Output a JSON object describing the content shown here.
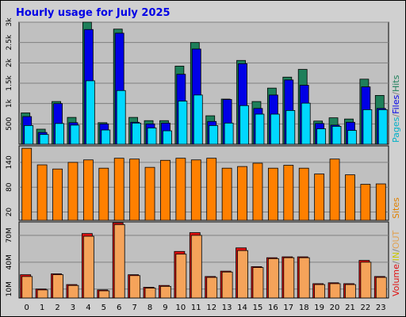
{
  "title": "Hourly usage for July 2025",
  "colors": {
    "background": "#d0d0d0",
    "panel": "#c0c0c0",
    "hits": "#1e7f5a",
    "files": "#0000e6",
    "pages": "#00d8ff",
    "sites": "#ff8000",
    "volume": "#e01010",
    "volume_in": "#f5a35a"
  },
  "legends": {
    "top": [
      {
        "text": "Pages",
        "color": "#00b0c8"
      },
      {
        "text": "/",
        "color": "#808080"
      },
      {
        "text": "Files",
        "color": "#0000e6"
      },
      {
        "text": "/",
        "color": "#808080"
      },
      {
        "text": "Hits",
        "color": "#1e7f5a"
      }
    ],
    "middle": [
      {
        "text": "Sites",
        "color": "#e08000"
      }
    ],
    "bottom": [
      {
        "text": "Volume",
        "color": "#e01010"
      },
      {
        "text": "/",
        "color": "#808080"
      },
      {
        "text": "IN",
        "color": "#c8c800"
      },
      {
        "text": "/",
        "color": "#808080"
      },
      {
        "text": "OUT",
        "color": "#e0a050"
      }
    ]
  },
  "chart_data": [
    {
      "type": "bar",
      "panel": "top",
      "categories": [
        "0",
        "1",
        "2",
        "3",
        "4",
        "5",
        "6",
        "7",
        "8",
        "9",
        "10",
        "11",
        "12",
        "13",
        "14",
        "15",
        "16",
        "17",
        "18",
        "19",
        "20",
        "21",
        "22",
        "23"
      ],
      "yticks": [
        "500",
        "1k",
        "1.5k",
        "2k",
        "2.5k",
        "3k"
      ],
      "ylim": [
        0,
        3000
      ],
      "series": [
        {
          "name": "Hits",
          "values": [
            770,
            370,
            1050,
            660,
            3000,
            530,
            2830,
            660,
            580,
            580,
            1920,
            2500,
            700,
            1110,
            2060,
            1050,
            1380,
            1650,
            1840,
            570,
            650,
            620,
            1600,
            1200
          ]
        },
        {
          "name": "Files",
          "values": [
            680,
            290,
            1000,
            530,
            2820,
            500,
            2730,
            540,
            500,
            520,
            1720,
            2340,
            560,
            1100,
            1980,
            880,
            1210,
            1580,
            1450,
            510,
            470,
            540,
            1410,
            880
          ]
        },
        {
          "name": "Pages",
          "values": [
            460,
            240,
            510,
            470,
            1560,
            350,
            1320,
            520,
            400,
            330,
            1060,
            1210,
            460,
            520,
            950,
            740,
            740,
            830,
            1010,
            380,
            440,
            340,
            850,
            850
          ]
        }
      ]
    },
    {
      "type": "bar",
      "panel": "middle",
      "categories": [
        "0",
        "1",
        "2",
        "3",
        "4",
        "5",
        "6",
        "7",
        "8",
        "9",
        "10",
        "11",
        "12",
        "13",
        "14",
        "15",
        "16",
        "17",
        "18",
        "19",
        "20",
        "21",
        "22",
        "23"
      ],
      "yticks": [
        "20",
        "80",
        "140"
      ],
      "ylim": [
        0,
        180
      ],
      "series": [
        {
          "name": "Sites",
          "values": [
            174,
            134,
            124,
            140,
            146,
            126,
            150,
            148,
            128,
            145,
            150,
            146,
            150,
            126,
            130,
            138,
            126,
            133,
            126,
            112,
            148,
            110,
            87,
            88
          ]
        }
      ]
    },
    {
      "type": "bar",
      "panel": "bottom",
      "categories": [
        "0",
        "1",
        "2",
        "3",
        "4",
        "5",
        "6",
        "7",
        "8",
        "9",
        "10",
        "11",
        "12",
        "13",
        "14",
        "15",
        "16",
        "17",
        "18",
        "19",
        "20",
        "21",
        "22",
        "23"
      ],
      "yticks": [
        "10M",
        "40M",
        "70M"
      ],
      "ylim": [
        0,
        85
      ],
      "series": [
        {
          "name": "Volume",
          "values": [
            26,
            10,
            27,
            15,
            72,
            9,
            84,
            26,
            12,
            14,
            52,
            73,
            24,
            30,
            56,
            35,
            45,
            46,
            46,
            16,
            17,
            16,
            42,
            24
          ]
        },
        {
          "name": "OUT",
          "values": [
            24,
            9,
            26,
            14,
            69,
            8,
            82,
            25,
            11,
            13,
            49,
            70,
            23,
            29,
            53,
            34,
            44,
            45,
            45,
            15,
            16,
            15,
            40,
            23
          ]
        }
      ]
    }
  ]
}
